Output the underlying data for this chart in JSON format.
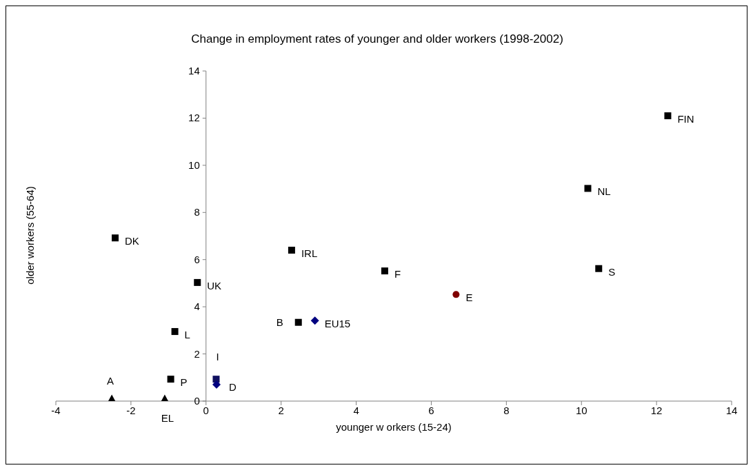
{
  "chart_data": {
    "type": "scatter",
    "title": "Change in employment rates of younger and older workers (1998-2002)",
    "xlabel": "younger w orkers (15-24)",
    "ylabel": "older workers (55-64)",
    "xlim": [
      -4,
      14
    ],
    "xticks": [
      -4,
      -2,
      0,
      2,
      4,
      6,
      8,
      10,
      12,
      14
    ],
    "ylim": [
      0,
      14
    ],
    "yticks": [
      0,
      2,
      4,
      6,
      8,
      10,
      12,
      14
    ],
    "series": [
      {
        "name": "FIN",
        "color": "#000000",
        "marker": "square",
        "x": [
          12.3
        ],
        "values": [
          12.1
        ]
      },
      {
        "name": "NL",
        "color": "#000000",
        "marker": "square",
        "x": [
          10.17
        ],
        "values": [
          9.02
        ]
      },
      {
        "name": "S",
        "color": "#000000",
        "marker": "square",
        "x": [
          10.46
        ],
        "values": [
          5.62
        ]
      },
      {
        "name": "DK",
        "color": "#000000",
        "marker": "square",
        "x": [
          -2.42
        ],
        "values": [
          6.92
        ]
      },
      {
        "name": "IRL",
        "color": "#000000",
        "marker": "square",
        "x": [
          2.28
        ],
        "values": [
          6.4
        ]
      },
      {
        "name": "F",
        "color": "#000000",
        "marker": "square",
        "x": [
          4.76
        ],
        "values": [
          5.52
        ]
      },
      {
        "name": "UK",
        "color": "#000000",
        "marker": "square",
        "x": [
          -0.23
        ],
        "values": [
          5.03
        ]
      },
      {
        "name": "E",
        "color": "#800000",
        "marker": "circle",
        "x": [
          6.66
        ],
        "values": [
          4.52
        ]
      },
      {
        "name": "B",
        "color": "#000000",
        "marker": "square",
        "x": [
          2.46
        ],
        "values": [
          3.34
        ]
      },
      {
        "name": "EU15",
        "color": "#000080",
        "marker": "diamond",
        "x": [
          2.9
        ],
        "values": [
          3.41
        ]
      },
      {
        "name": "L",
        "color": "#000000",
        "marker": "square",
        "x": [
          -0.83
        ],
        "values": [
          2.95
        ]
      },
      {
        "name": "P",
        "color": "#000000",
        "marker": "square",
        "x": [
          -0.94
        ],
        "values": [
          0.93
        ]
      },
      {
        "name": "I",
        "color": "#101060",
        "marker": "square",
        "x": [
          0.27
        ],
        "values": [
          0.93
        ]
      },
      {
        "name": "D",
        "color": "#000080",
        "marker": "diamond",
        "x": [
          0.28
        ],
        "values": [
          0.7
        ]
      },
      {
        "name": "A",
        "color": "#000000",
        "marker": "triangle",
        "x": [
          -2.51
        ],
        "values": [
          0.1
        ]
      },
      {
        "name": "EL",
        "color": "#000000",
        "marker": "triangle",
        "x": [
          -1.1
        ],
        "values": [
          0.1
        ]
      }
    ]
  }
}
